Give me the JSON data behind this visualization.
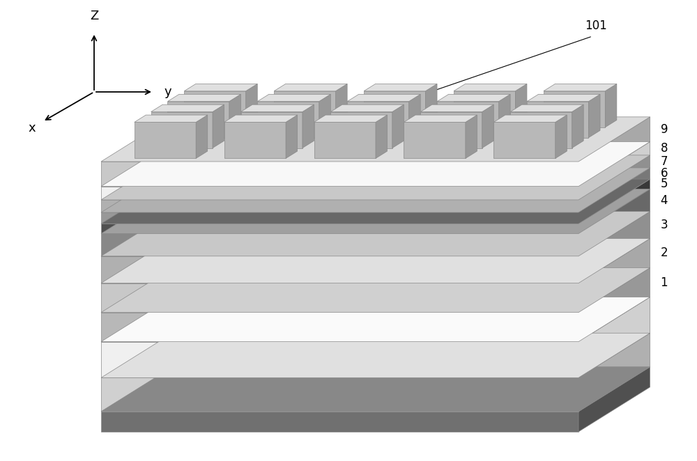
{
  "bg_color": "#ffffff",
  "figure_size": [
    10.0,
    6.62
  ],
  "dpi": 100,
  "layers_top_to_bottom": [
    {
      "id": 9,
      "label": "9",
      "cf": "#c8c8c8",
      "cs": "#a8a8a8",
      "ct": "#dcdcdc",
      "th": 0.055
    },
    {
      "id": 8,
      "label": "8",
      "cf": "#f0f0f0",
      "cs": "#d0d0d0",
      "ct": "#f8f8f8",
      "th": 0.03
    },
    {
      "id": 7,
      "label": "7",
      "cf": "#b0b0b0",
      "cs": "#909090",
      "ct": "#c8c8c8",
      "th": 0.028
    },
    {
      "id": 6,
      "label": "6",
      "cf": "#989898",
      "cs": "#787878",
      "ct": "#b0b0b0",
      "th": 0.025
    },
    {
      "id": 5,
      "label": "5",
      "cf": "#505050",
      "cs": "#383838",
      "ct": "#686868",
      "th": 0.022
    },
    {
      "id": 4,
      "label": "4",
      "cf": "#888888",
      "cs": "#686868",
      "ct": "#a0a0a0",
      "th": 0.05
    },
    {
      "id": 3,
      "label": "3",
      "cf": "#b0b0b0",
      "cs": "#909090",
      "ct": "#c8c8c8",
      "th": 0.06
    },
    {
      "id": 2,
      "label": "2",
      "cf": "#c8c8c8",
      "cs": "#a8a8a8",
      "ct": "#e0e0e0",
      "th": 0.065
    },
    {
      "id": 1,
      "label": "1",
      "cf": "#b8b8b8",
      "cs": "#989898",
      "ct": "#d0d0d0",
      "th": 0.065
    },
    {
      "id": 0,
      "label": "",
      "cf": "#f0f0f0",
      "cs": "#d0d0d0",
      "ct": "#fafafa",
      "th": 0.08
    },
    {
      "id": -1,
      "label": "",
      "cf": "#d0d0d0",
      "cs": "#b0b0b0",
      "ct": "#e0e0e0",
      "th": 0.075
    },
    {
      "id": -2,
      "label": "",
      "cf": "#707070",
      "cs": "#505050",
      "ct": "#888888",
      "th": 0.045
    }
  ],
  "pillar": {
    "ct": "#e0e0e0",
    "cf": "#b8b8b8",
    "cs": "#989898",
    "rows": 4,
    "cols": 5
  },
  "label_fontsize": 12,
  "annot_fontsize": 12,
  "axis_fontsize": 13
}
